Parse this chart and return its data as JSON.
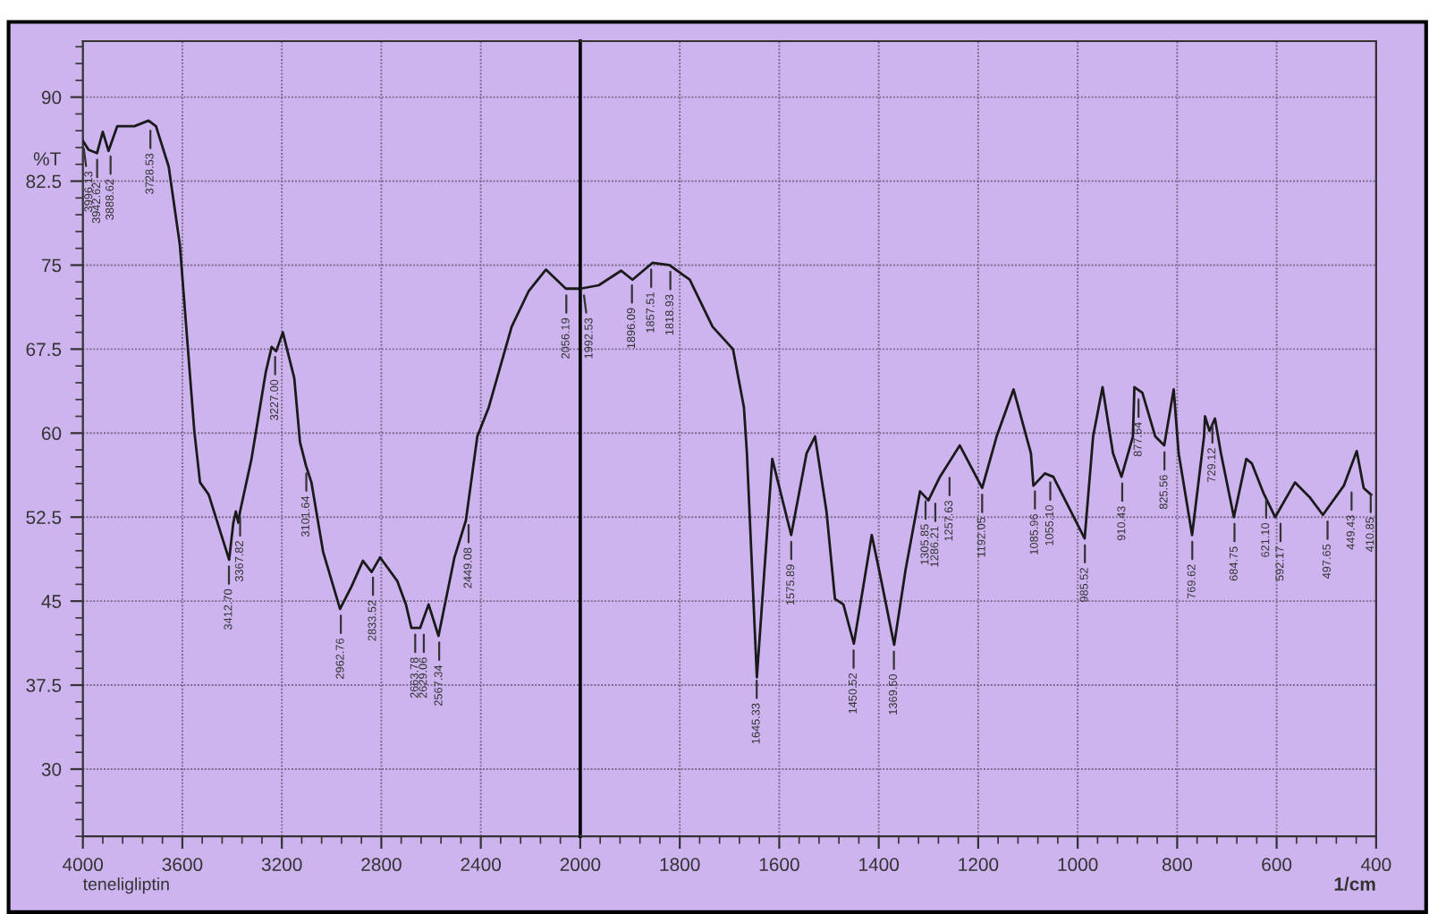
{
  "chart_data": [
    {
      "type": "line",
      "ylabel": "%T",
      "xlim": [
        4000,
        2000
      ],
      "xticks": [
        4000,
        3600,
        3200,
        2800,
        2400,
        2000
      ],
      "ylim": [
        24,
        95
      ],
      "yticks": [
        30,
        37.5,
        45,
        52.5,
        60,
        67.5,
        75,
        82.5,
        90
      ],
      "grid": true,
      "marker": "none",
      "line_style": "solid",
      "series": [
        {
          "color": "#1a1a1a",
          "x": [
            4000,
            3977,
            3943,
            3920,
            3897,
            3862,
            3793,
            3736,
            3706,
            3655,
            3610,
            3552,
            3529,
            3494,
            3412,
            3395,
            3385,
            3375,
            3368,
            3322,
            3265,
            3241,
            3223,
            3196,
            3150,
            3127,
            3103,
            3081,
            3034,
            2966,
            2920,
            2874,
            2839,
            2805,
            2736,
            2701,
            2679,
            2644,
            2610,
            2570,
            2506,
            2460,
            2414,
            2368,
            2276,
            2207,
            2138,
            2058,
            2000
          ],
          "values": [
            86.1,
            85.3,
            85.0,
            86.9,
            85.2,
            87.4,
            87.4,
            87.9,
            87.4,
            83.8,
            76.8,
            60.2,
            55.6,
            54.5,
            48.7,
            52.0,
            53.0,
            52.0,
            53.0,
            57.7,
            65.4,
            67.7,
            67.3,
            69.0,
            64.9,
            59.2,
            57.1,
            55.6,
            49.4,
            44.3,
            46.3,
            48.6,
            47.6,
            48.9,
            46.8,
            44.7,
            42.6,
            42.6,
            44.7,
            41.9,
            48.9,
            52.2,
            59.7,
            62.3,
            69.5,
            72.7,
            74.6,
            72.9,
            72.9
          ]
        }
      ],
      "annotations": [
        {
          "text": "3996.13",
          "x": 3996.13,
          "y": 86.0
        },
        {
          "text": "3942.62",
          "x": 3942.62,
          "y": 85.0
        },
        {
          "text": "3888.62",
          "x": 3888.62,
          "y": 85.3
        },
        {
          "text": "3728.53",
          "x": 3728.53,
          "y": 87.6
        },
        {
          "text": "3412.70",
          "x": 3412.7,
          "y": 48.7
        },
        {
          "text": "3367.82",
          "x": 3367.82,
          "y": 53.0
        },
        {
          "text": "3227.00",
          "x": 3227.0,
          "y": 67.4
        },
        {
          "text": "3101.64",
          "x": 3101.64,
          "y": 57.0
        },
        {
          "text": "2962.76",
          "x": 2962.76,
          "y": 44.3
        },
        {
          "text": "2833.52",
          "x": 2833.52,
          "y": 47.7
        },
        {
          "text": "2663.78",
          "x": 2663.78,
          "y": 42.6
        },
        {
          "text": "2629.06",
          "x": 2629.06,
          "y": 42.6
        },
        {
          "text": "2567.34",
          "x": 2567.34,
          "y": 41.9
        },
        {
          "text": "2449.08",
          "x": 2449.08,
          "y": 52.4
        },
        {
          "text": "2056.19",
          "x": 2056.19,
          "y": 72.9
        },
        "teneligliptin"
      ]
    },
    {
      "type": "line",
      "xlabel": "1/cm",
      "tick_labels": "x",
      "xlim": [
        2000,
        400
      ],
      "xticks": [
        1800,
        1600,
        1400,
        1200,
        1000,
        800,
        600,
        400
      ],
      "ylim": [
        24,
        95
      ],
      "yticks": [
        30,
        37.5,
        45,
        52.5,
        60,
        67.5,
        75,
        82.5,
        90
      ],
      "grid": true,
      "marker": "none",
      "line_style": "solid",
      "series": [
        {
          "color": "#1a1a1a",
          "x": [
            2000,
            1963,
            1918,
            1895,
            1855,
            1821,
            1780,
            1734,
            1693,
            1671,
            1665,
            1645,
            1614,
            1576,
            1545,
            1528,
            1505,
            1488,
            1471,
            1450,
            1414,
            1397,
            1369,
            1346,
            1317,
            1300,
            1277,
            1237,
            1192,
            1163,
            1129,
            1094,
            1089,
            1066,
            1049,
            986,
            969,
            950,
            929,
            912,
            889,
            886,
            870,
            844,
            826,
            807,
            797,
            770,
            746,
            744,
            735,
            724,
            712,
            686,
            661,
            650,
            626,
            603,
            563,
            534,
            507,
            465,
            439,
            425,
            410
          ],
          "values": [
            72.9,
            73.2,
            74.5,
            73.7,
            75.2,
            75.0,
            73.7,
            69.5,
            67.5,
            62.3,
            58.2,
            38.2,
            57.7,
            50.9,
            58.2,
            59.7,
            53.0,
            45.2,
            44.7,
            41.2,
            50.9,
            47.3,
            41.1,
            47.8,
            54.8,
            54.0,
            56.1,
            58.9,
            55.1,
            59.7,
            63.9,
            58.2,
            55.3,
            56.4,
            56.1,
            50.6,
            59.7,
            64.1,
            58.2,
            56.1,
            59.7,
            64.1,
            63.6,
            59.7,
            58.9,
            63.9,
            58.2,
            50.9,
            59.7,
            61.5,
            60.2,
            61.3,
            58.2,
            52.5,
            57.7,
            57.3,
            54.6,
            52.5,
            55.6,
            54.3,
            52.7,
            55.3,
            58.4,
            55.1,
            54.5
          ]
        }
      ],
      "annotations": [
        {
          "text": "1992.53",
          "x": 1992.53,
          "y": 72.9
        },
        {
          "text": "1896.09",
          "x": 1896.09,
          "y": 73.8
        },
        {
          "text": "1857.51",
          "x": 1857.51,
          "y": 75.2
        },
        {
          "text": "1818.93",
          "x": 1818.93,
          "y": 75.0
        },
        {
          "text": "1645.33",
          "x": 1645.33,
          "y": 38.5
        },
        {
          "text": "1575.89",
          "x": 1575.89,
          "y": 50.9
        },
        {
          "text": "1450.52",
          "x": 1450.52,
          "y": 41.2
        },
        {
          "text": "1369.50",
          "x": 1369.5,
          "y": 41.1
        },
        {
          "text": "1305.85",
          "x": 1305.85,
          "y": 54.5
        },
        {
          "text": "1286.21",
          "x": 1286.21,
          "y": 54.3
        },
        {
          "text": "1257.63",
          "x": 1257.63,
          "y": 56.6
        },
        {
          "text": "1192.05",
          "x": 1192.05,
          "y": 55.1
        },
        {
          "text": "1085.96",
          "x": 1085.96,
          "y": 55.4
        },
        {
          "text": "1055.10",
          "x": 1055.1,
          "y": 56.2
        },
        {
          "text": "985.52",
          "x": 985.52,
          "y": 50.6
        },
        {
          "text": "910.43",
          "x": 910.43,
          "y": 56.1
        },
        {
          "text": "877.64",
          "x": 877.64,
          "y": 63.6
        },
        {
          "text": "825.56",
          "x": 825.56,
          "y": 58.9
        },
        {
          "text": "769.62",
          "x": 769.62,
          "y": 50.9
        },
        {
          "text": "729.12",
          "x": 729.12,
          "y": 61.3
        },
        {
          "text": "684.75",
          "x": 684.75,
          "y": 52.5
        },
        {
          "text": "621.10",
          "x": 621.1,
          "y": 54.6
        },
        {
          "text": "592.17",
          "x": 592.17,
          "y": 52.5
        },
        {
          "text": "497.65",
          "x": 497.65,
          "y": 52.7
        },
        {
          "text": "449.43",
          "x": 449.43,
          "y": 55.3
        },
        {
          "text": "410.85",
          "x": 410.85,
          "y": 55.1
        }
      ]
    }
  ]
}
